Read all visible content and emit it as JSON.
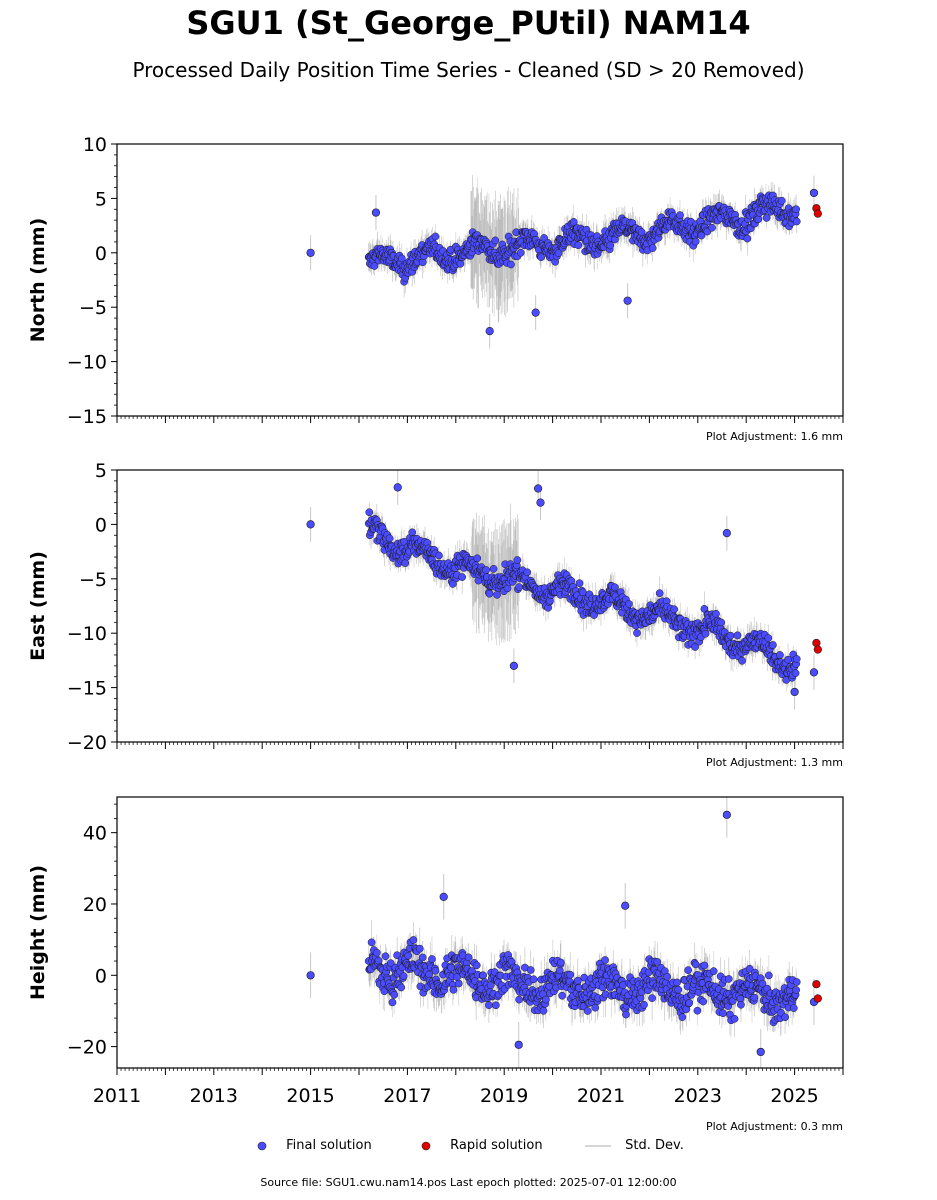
{
  "title": "SGU1 (St_George_PUtil) NAM14",
  "subtitle": "Processed Daily Position Time Series - Cleaned (SD > 20 Removed)",
  "source": "Source file: SGU1.cwu.nam14.pos  Last epoch plotted: 2025-07-01 12:00:00",
  "legend": {
    "final": "Final solution",
    "rapid": "Rapid solution",
    "std": "Std. Dev."
  },
  "colors": {
    "final": "#4b4bff",
    "rapid": "#e00000",
    "std": "#c8c8c8",
    "std_dense": "#555555"
  },
  "chart_data": [
    {
      "type": "scatter",
      "name": "north",
      "ylabel": "North (mm)",
      "ylim": [
        -15,
        10
      ],
      "yticks": [
        -15,
        -10,
        -5,
        0,
        5,
        10
      ],
      "xlim": [
        2011,
        2026
      ],
      "xticks": [
        2011,
        2013,
        2015,
        2017,
        2019,
        2021,
        2023,
        2025
      ],
      "adjustment": "Plot Adjustment: 1.6 mm",
      "trend": [
        [
          2016.2,
          -1.0
        ],
        [
          2017.0,
          -0.6
        ],
        [
          2018.0,
          0.0
        ],
        [
          2019.0,
          0.5
        ],
        [
          2020.0,
          0.9
        ],
        [
          2021.0,
          1.3
        ],
        [
          2022.0,
          1.9
        ],
        [
          2023.0,
          2.7
        ],
        [
          2024.0,
          3.3
        ],
        [
          2025.0,
          4.3
        ]
      ],
      "points": [
        [
          2015.0,
          0.0
        ],
        [
          2016.35,
          3.7
        ],
        [
          2018.7,
          -7.2
        ],
        [
          2019.65,
          -5.5
        ],
        [
          2021.55,
          -4.4
        ],
        [
          2025.4,
          5.5
        ]
      ],
      "rapid": [
        [
          2025.45,
          4.1
        ],
        [
          2025.48,
          3.6
        ]
      ]
    },
    {
      "type": "scatter",
      "name": "east",
      "ylabel": "East (mm)",
      "ylim": [
        -20,
        5
      ],
      "yticks": [
        -20,
        -15,
        -10,
        -5,
        0,
        5
      ],
      "xlim": [
        2011,
        2026
      ],
      "xticks": [
        2011,
        2013,
        2015,
        2017,
        2019,
        2021,
        2023,
        2025
      ],
      "adjustment": "Plot Adjustment: 1.3 mm",
      "trend": [
        [
          2016.2,
          -0.8
        ],
        [
          2017.0,
          -2.2
        ],
        [
          2018.0,
          -3.8
        ],
        [
          2019.0,
          -5.0
        ],
        [
          2020.0,
          -6.0
        ],
        [
          2021.0,
          -7.0
        ],
        [
          2022.0,
          -8.2
        ],
        [
          2023.0,
          -9.6
        ],
        [
          2024.0,
          -10.8
        ],
        [
          2025.0,
          -12.8
        ]
      ],
      "points": [
        [
          2015.0,
          0.0
        ],
        [
          2016.8,
          3.4
        ],
        [
          2019.7,
          3.3
        ],
        [
          2019.75,
          2.0
        ],
        [
          2019.2,
          -13.0
        ],
        [
          2023.6,
          -0.8
        ],
        [
          2025.0,
          -15.4
        ],
        [
          2025.4,
          -13.6
        ]
      ],
      "rapid": [
        [
          2025.45,
          -10.9
        ],
        [
          2025.48,
          -11.5
        ]
      ]
    },
    {
      "type": "scatter",
      "name": "height",
      "ylabel": "Height (mm)",
      "ylim": [
        -26,
        50
      ],
      "yticks": [
        -20,
        0,
        20,
        40
      ],
      "xlim": [
        2011,
        2026
      ],
      "xticks": [
        2011,
        2013,
        2015,
        2017,
        2019,
        2021,
        2023,
        2025
      ],
      "adjustment": "Plot Adjustment: 0.3 mm",
      "trend": [
        [
          2016.2,
          3.0
        ],
        [
          2017.0,
          1.5
        ],
        [
          2018.0,
          0.0
        ],
        [
          2019.0,
          -1.5
        ],
        [
          2020.0,
          -3.0
        ],
        [
          2021.0,
          -3.5
        ],
        [
          2022.0,
          -3.5
        ],
        [
          2023.0,
          -4.0
        ],
        [
          2024.0,
          -5.0
        ],
        [
          2025.0,
          -6.0
        ]
      ],
      "points": [
        [
          2015.0,
          0.0
        ],
        [
          2023.6,
          45.0
        ],
        [
          2017.75,
          22.0
        ],
        [
          2021.5,
          19.5
        ],
        [
          2019.3,
          -19.5
        ],
        [
          2024.3,
          -21.5
        ],
        [
          2025.4,
          -7.5
        ]
      ],
      "rapid": [
        [
          2025.45,
          -2.5
        ],
        [
          2025.48,
          -6.5
        ]
      ]
    }
  ]
}
